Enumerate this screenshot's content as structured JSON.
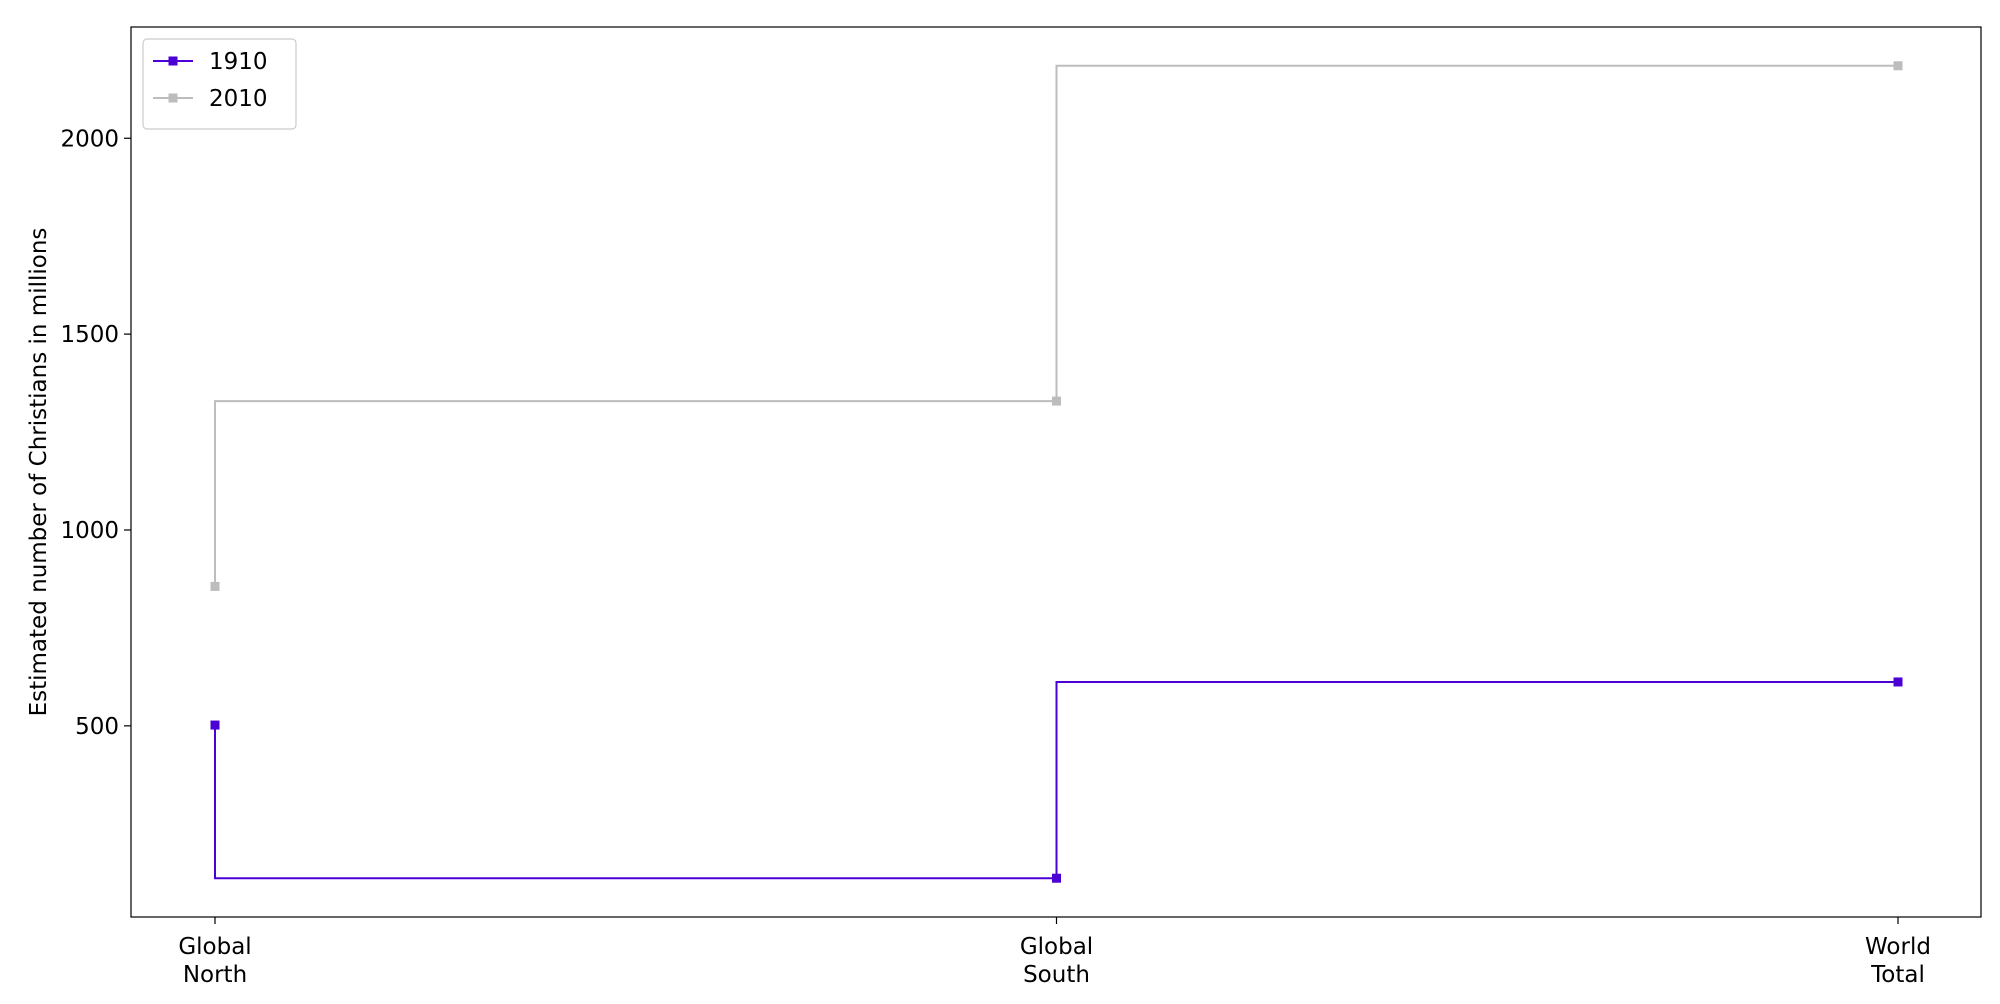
{
  "chart_data": {
    "type": "line",
    "step": "pre",
    "categories": [
      "Global\nNorth",
      "Global\nSouth",
      "World\nTotal"
    ],
    "series": [
      {
        "name": "1910",
        "values": [
          502,
          111,
          612
        ],
        "color": "#4b00d6"
      },
      {
        "name": "2010",
        "values": [
          856,
          1329,
          2185
        ],
        "color": "#bdbdbd"
      }
    ],
    "title": "",
    "xlabel": "",
    "ylabel": "Estimated number of Christians in millions",
    "ylim": [
      12,
      2284
    ],
    "yticks": [
      500,
      1000,
      1500,
      2000
    ],
    "grid": false,
    "legend_position": "upper-left",
    "marker": "square"
  }
}
